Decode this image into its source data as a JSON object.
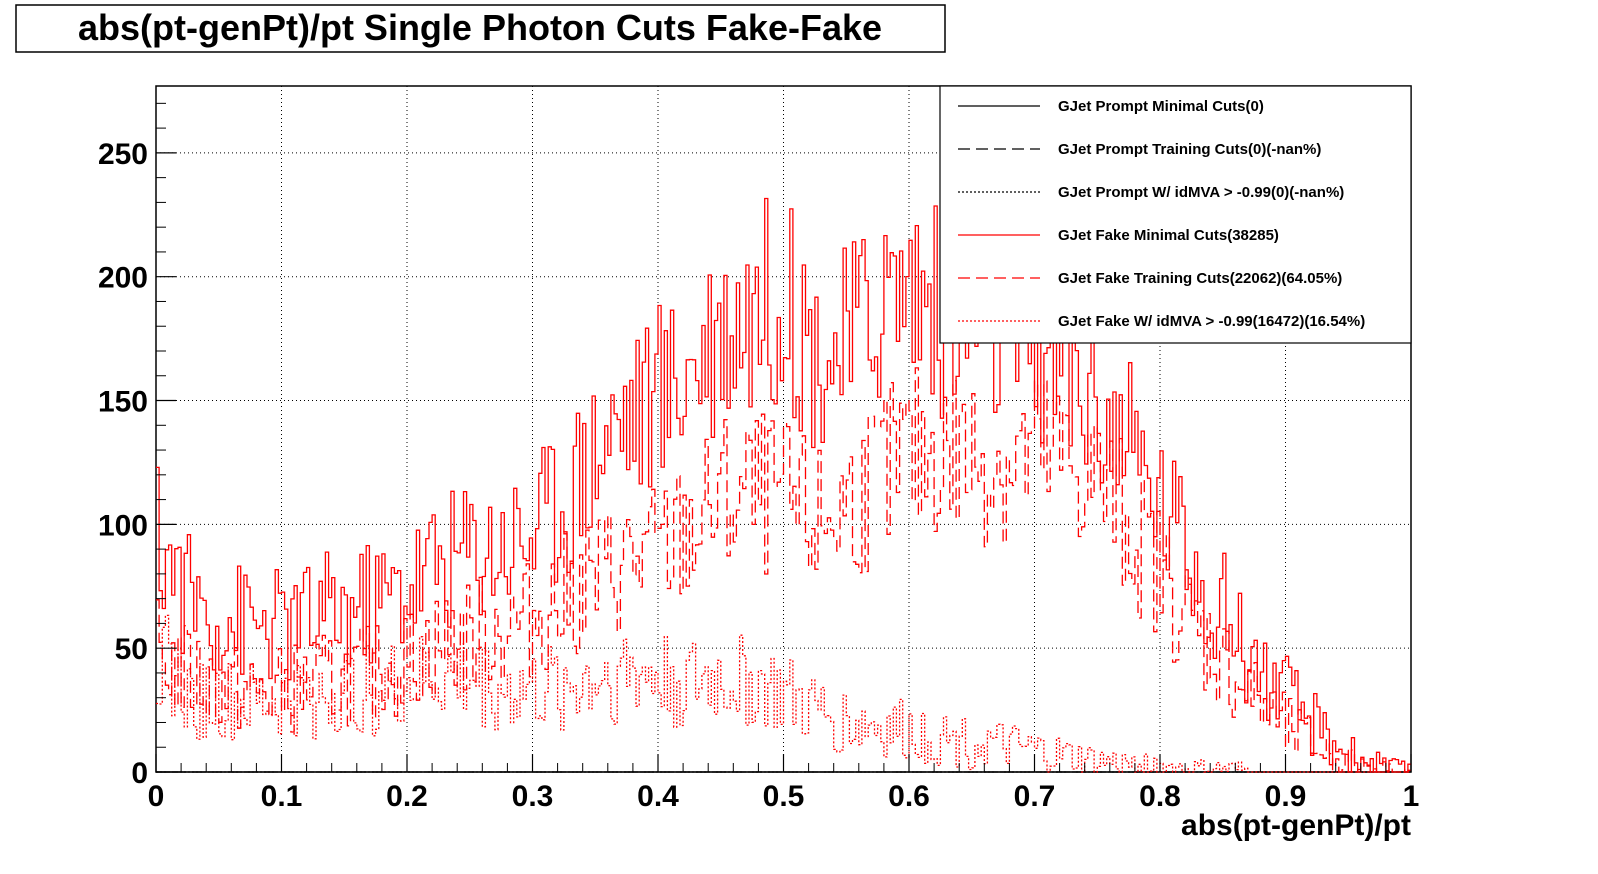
{
  "chart_data": {
    "type": "line",
    "title": "abs(pt-genPt)/pt Single Photon Cuts Fake-Fake",
    "xlabel": "abs(pt-genPt)/pt",
    "ylabel": "",
    "xlim": [
      0,
      1
    ],
    "ylim": [
      0,
      277
    ],
    "x_ticks": [
      0,
      0.1,
      0.2,
      0.3,
      0.4,
      0.5,
      0.6,
      0.7,
      0.8,
      0.9,
      1
    ],
    "x_tick_labels": [
      "0",
      "0.1",
      "0.2",
      "0.3",
      "0.4",
      "0.5",
      "0.6",
      "0.7",
      "0.8",
      "0.9",
      "1"
    ],
    "y_ticks": [
      0,
      50,
      100,
      150,
      200,
      250
    ],
    "y_tick_labels": [
      "0",
      "50",
      "100",
      "150",
      "200",
      "250"
    ],
    "grid": true,
    "legend_position": "top-right",
    "x": [
      0.0,
      0.025,
      0.05,
      0.075,
      0.1,
      0.125,
      0.15,
      0.175,
      0.2,
      0.225,
      0.25,
      0.275,
      0.3,
      0.325,
      0.35,
      0.375,
      0.4,
      0.425,
      0.45,
      0.475,
      0.5,
      0.525,
      0.55,
      0.575,
      0.6,
      0.625,
      0.65,
      0.675,
      0.7,
      0.725,
      0.75,
      0.775,
      0.8,
      0.825,
      0.85,
      0.875,
      0.9,
      0.925,
      0.95,
      0.975,
      1.0
    ],
    "series": [
      {
        "name": "GJet Prompt Minimal Cuts(0)",
        "color": "#000000",
        "dash": "solid",
        "values": [
          0,
          0,
          0,
          0,
          0,
          0,
          0,
          0,
          0,
          0,
          0,
          0,
          0,
          0,
          0,
          0,
          0,
          0,
          0,
          0,
          0,
          0,
          0,
          0,
          0,
          0,
          0,
          0,
          0,
          0,
          0,
          0,
          0,
          0,
          0,
          0,
          0,
          0,
          0,
          0,
          0
        ]
      },
      {
        "name": "GJet Prompt Training Cuts(0)(-nan%)",
        "color": "#000000",
        "dash": "dashed",
        "values": [
          0,
          0,
          0,
          0,
          0,
          0,
          0,
          0,
          0,
          0,
          0,
          0,
          0,
          0,
          0,
          0,
          0,
          0,
          0,
          0,
          0,
          0,
          0,
          0,
          0,
          0,
          0,
          0,
          0,
          0,
          0,
          0,
          0,
          0,
          0,
          0,
          0,
          0,
          0,
          0,
          0
        ]
      },
      {
        "name": "GJet Prompt W/ idMVA > -0.99(0)(-nan%)",
        "color": "#000000",
        "dash": "dotted",
        "values": [
          0,
          0,
          0,
          0,
          0,
          0,
          0,
          0,
          0,
          0,
          0,
          0,
          0,
          0,
          0,
          0,
          0,
          0,
          0,
          0,
          0,
          0,
          0,
          0,
          0,
          0,
          0,
          0,
          0,
          0,
          0,
          0,
          0,
          0,
          0,
          0,
          0,
          0,
          0,
          0,
          0
        ]
      },
      {
        "name": "GJet Fake Minimal Cuts(38285)",
        "color": "#ff0000",
        "dash": "solid",
        "values": [
          95,
          72,
          62,
          60,
          58,
          62,
          65,
          68,
          75,
          85,
          90,
          92,
          98,
          110,
          130,
          145,
          150,
          165,
          180,
          188,
          192,
          170,
          170,
          190,
          198,
          185,
          180,
          175,
          170,
          162,
          150,
          130,
          110,
          88,
          65,
          45,
          30,
          18,
          7,
          3,
          0
        ]
      },
      {
        "name": "GJet Fake Training Cuts(22062)(64.05%)",
        "color": "#ff0000",
        "dash": "dashed",
        "values": [
          48,
          40,
          35,
          32,
          33,
          36,
          38,
          40,
          45,
          52,
          55,
          58,
          62,
          70,
          78,
          85,
          88,
          98,
          110,
          112,
          110,
          100,
          108,
          118,
          128,
          130,
          128,
          125,
          128,
          125,
          118,
          100,
          80,
          60,
          45,
          30,
          18,
          10,
          4,
          1,
          0
        ]
      },
      {
        "name": "GJet Fake W/ idMVA > -0.99(16472)(16.54%)",
        "color": "#ff0000",
        "dash": "dotted",
        "values": [
          50,
          30,
          28,
          27,
          28,
          30,
          32,
          33,
          35,
          38,
          37,
          33,
          32,
          34,
          38,
          40,
          38,
          35,
          37,
          36,
          30,
          24,
          20,
          18,
          16,
          14,
          12,
          10,
          8,
          6,
          4,
          3,
          2,
          1,
          1,
          0,
          0,
          0,
          0,
          0,
          0
        ]
      }
    ]
  }
}
